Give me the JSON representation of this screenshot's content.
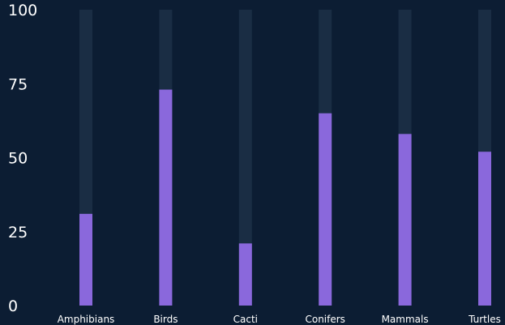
{
  "chart_data": {
    "type": "bar",
    "title": "",
    "xlabel": "",
    "ylabel": "",
    "categories": [
      "Amphibians",
      "Birds",
      "Cacti",
      "Conifers",
      "Mammals",
      "Turtles"
    ],
    "values": [
      31,
      73,
      21,
      65,
      58,
      52
    ],
    "ylim": [
      0,
      100
    ],
    "yticks": [
      0,
      25,
      50,
      75,
      100
    ],
    "grid": false,
    "legend": "none",
    "colors": {
      "background": "#0c1d33",
      "track": "#1a2d44",
      "bar": "#8a68dc",
      "text": "#ffffff"
    }
  }
}
